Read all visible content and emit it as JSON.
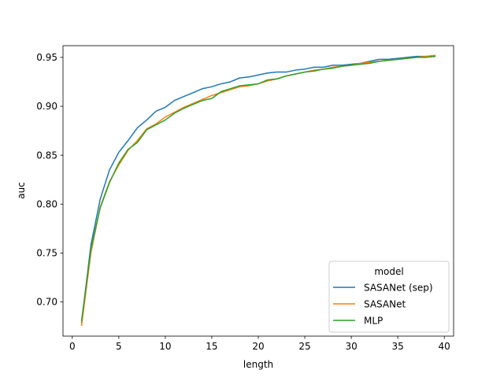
{
  "chart_data": {
    "type": "line",
    "title": "",
    "xlabel": "length",
    "ylabel": "auc",
    "xlim": [
      -1,
      41
    ],
    "ylim": [
      0.665,
      0.962
    ],
    "xticks": [
      0,
      5,
      10,
      15,
      20,
      25,
      30,
      35,
      40
    ],
    "yticks": [
      0.7,
      0.75,
      0.8,
      0.85,
      0.9,
      0.95
    ],
    "xtick_labels": [
      "0",
      "5",
      "10",
      "15",
      "20",
      "25",
      "30",
      "35",
      "40"
    ],
    "ytick_labels": [
      "0.70",
      "0.75",
      "0.80",
      "0.85",
      "0.90",
      "0.95"
    ],
    "grid": false,
    "legend": {
      "title": "model",
      "placement": "lower-right"
    },
    "x": [
      1,
      2,
      3,
      4,
      5,
      6,
      7,
      8,
      9,
      10,
      11,
      12,
      13,
      14,
      15,
      16,
      17,
      18,
      19,
      20,
      21,
      22,
      23,
      24,
      25,
      26,
      27,
      28,
      29,
      30,
      31,
      32,
      33,
      34,
      35,
      36,
      37,
      38,
      39
    ],
    "series": [
      {
        "name": "SASANet (sep)",
        "color": "#1f77b4",
        "values": [
          0.679,
          0.758,
          0.805,
          0.835,
          0.853,
          0.865,
          0.878,
          0.886,
          0.895,
          0.899,
          0.906,
          0.91,
          0.914,
          0.918,
          0.92,
          0.923,
          0.925,
          0.929,
          0.93,
          0.932,
          0.934,
          0.935,
          0.935,
          0.937,
          0.938,
          0.94,
          0.94,
          0.942,
          0.942,
          0.943,
          0.944,
          0.946,
          0.948,
          0.948,
          0.949,
          0.95,
          0.951,
          0.951,
          0.952
        ]
      },
      {
        "name": "SASANet",
        "color": "#ff7f0e",
        "values": [
          0.676,
          0.75,
          0.797,
          0.823,
          0.84,
          0.855,
          0.865,
          0.877,
          0.882,
          0.889,
          0.894,
          0.899,
          0.903,
          0.907,
          0.911,
          0.914,
          0.917,
          0.92,
          0.921,
          0.923,
          0.926,
          0.928,
          0.931,
          0.933,
          0.935,
          0.937,
          0.938,
          0.94,
          0.941,
          0.942,
          0.944,
          0.945,
          0.946,
          0.947,
          0.948,
          0.949,
          0.95,
          0.951,
          0.952
        ]
      },
      {
        "name": "MLP",
        "color": "#2ca02c",
        "values": [
          0.681,
          0.754,
          0.796,
          0.822,
          0.842,
          0.856,
          0.863,
          0.876,
          0.881,
          0.886,
          0.893,
          0.898,
          0.902,
          0.906,
          0.908,
          0.915,
          0.918,
          0.921,
          0.922,
          0.923,
          0.927,
          0.928,
          0.931,
          0.933,
          0.935,
          0.936,
          0.938,
          0.939,
          0.941,
          0.942,
          0.943,
          0.944,
          0.946,
          0.947,
          0.948,
          0.949,
          0.95,
          0.95,
          0.951
        ]
      }
    ]
  }
}
